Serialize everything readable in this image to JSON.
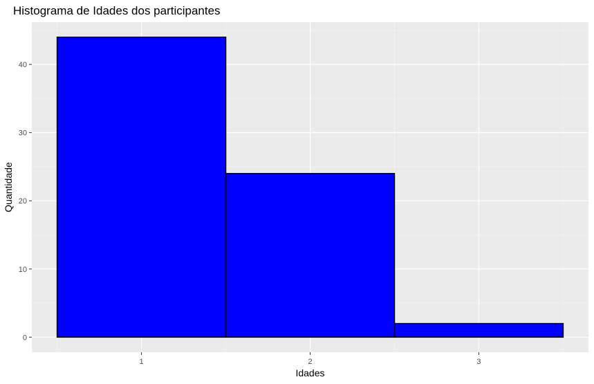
{
  "chart_data": {
    "type": "bar",
    "title": "Histograma de Idades dos participantes",
    "xlabel": "Idades",
    "ylabel": "Quantidade",
    "categories": [
      "1",
      "2",
      "3"
    ],
    "x_centers": [
      1,
      2,
      3
    ],
    "values": [
      44,
      24,
      2
    ],
    "bin_width": 1,
    "xlim": [
      0.35,
      3.65
    ],
    "ylim": [
      -2.2,
      46.2
    ],
    "y_ticks": [
      0,
      10,
      20,
      30,
      40
    ],
    "x_ticks": [
      1,
      2,
      3
    ],
    "grid": true,
    "legend": "none",
    "colors": {
      "bar_fill": "#0000ff",
      "bar_stroke": "#000000",
      "panel_background": "#ebebeb",
      "grid_major": "#ffffff",
      "grid_minor": "#f5f5f5",
      "tick_text": "#4d4d4d",
      "tick_mark": "#333333"
    }
  }
}
